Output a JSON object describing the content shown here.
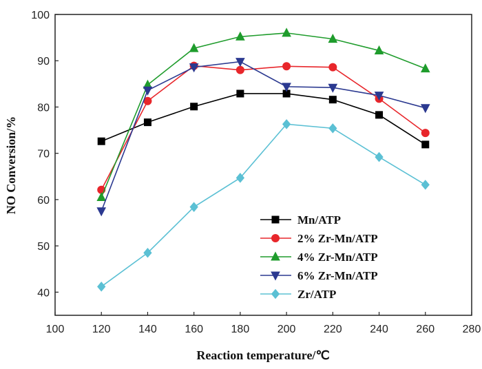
{
  "chart_data": {
    "type": "line",
    "title": "",
    "xlabel": "Reaction temperature/℃",
    "ylabel": "NO Conversion/%",
    "xlim": [
      100,
      280
    ],
    "ylim": [
      35,
      100
    ],
    "xticks": [
      "100",
      "120",
      "140",
      "160",
      "180",
      "200",
      "220",
      "240",
      "260",
      "280"
    ],
    "yticks": [
      "40",
      "50",
      "60",
      "70",
      "80",
      "90",
      "100"
    ],
    "x": [
      120,
      140,
      160,
      180,
      200,
      220,
      240,
      260
    ],
    "grid": false,
    "legend_position": "lower-right",
    "series": [
      {
        "name": "Mn/ATP",
        "color": "#000000",
        "marker": "square",
        "values": [
          72.6,
          76.7,
          80.1,
          82.9,
          82.9,
          81.6,
          78.3,
          71.9
        ]
      },
      {
        "name": "2% Zr-Mn/ATP",
        "color": "#e8262b",
        "marker": "circle",
        "values": [
          62.1,
          81.3,
          88.9,
          88.0,
          88.8,
          88.6,
          81.8,
          74.4
        ]
      },
      {
        "name": "4% Zr-Mn/ATP",
        "color": "#1f9c2c",
        "marker": "triangle-up",
        "values": [
          60.5,
          84.8,
          92.7,
          95.2,
          96.0,
          94.7,
          92.2,
          88.3
        ]
      },
      {
        "name": "6% Zr-Mn/ATP",
        "color": "#2b3990",
        "marker": "triangle-down",
        "values": [
          57.5,
          83.6,
          88.6,
          89.8,
          84.4,
          84.2,
          82.5,
          79.8
        ]
      },
      {
        "name": "Zr/ATP",
        "color": "#5bc0d4",
        "marker": "diamond",
        "values": [
          41.2,
          48.5,
          58.4,
          64.7,
          76.3,
          75.4,
          69.2,
          63.2
        ]
      }
    ]
  }
}
